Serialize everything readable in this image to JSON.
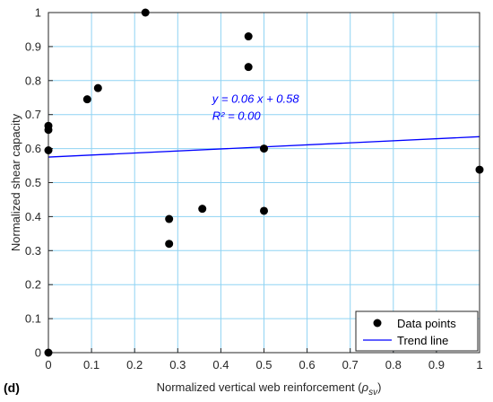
{
  "panel_label": "(d)",
  "chart_data": {
    "type": "scatter",
    "xlabel_prefix": "Normalized vertical web reinforcement (",
    "xlabel_symbol": "ρ",
    "xlabel_subscript": "sv",
    "xlabel_suffix": ")",
    "ylabel": "Normalized shear capacity",
    "xlim": [
      0,
      1
    ],
    "ylim": [
      0,
      1
    ],
    "xticks": [
      0,
      0.1,
      0.2,
      0.3,
      0.4,
      0.5,
      0.6,
      0.7,
      0.8,
      0.9,
      1
    ],
    "xtick_labels": [
      "0",
      "0.1",
      "0.2",
      "0.3",
      "0.4",
      "0.5",
      "0.6",
      "0.7",
      "0.8",
      "0.9",
      "1"
    ],
    "yticks": [
      0,
      0.1,
      0.2,
      0.3,
      0.4,
      0.5,
      0.6,
      0.7,
      0.8,
      0.9,
      1
    ],
    "ytick_labels": [
      "0",
      "0.1",
      "0.2",
      "0.3",
      "0.4",
      "0.5",
      "0.6",
      "0.7",
      "0.8",
      "0.9",
      "1"
    ],
    "grid": true,
    "series": [
      {
        "name": "Data points",
        "kind": "scatter",
        "color": "#000000",
        "points": [
          [
            0.0,
            0.0
          ],
          [
            0.0,
            0.595
          ],
          [
            0.0,
            0.655
          ],
          [
            0.0,
            0.667
          ],
          [
            0.09,
            0.745
          ],
          [
            0.115,
            0.778
          ],
          [
            0.225,
            1.0
          ],
          [
            0.28,
            0.393
          ],
          [
            0.28,
            0.32
          ],
          [
            0.357,
            0.423
          ],
          [
            0.464,
            0.93
          ],
          [
            0.464,
            0.84
          ],
          [
            0.5,
            0.6
          ],
          [
            0.5,
            0.417
          ],
          [
            1.0,
            0.538
          ]
        ]
      },
      {
        "name": "Trend line",
        "kind": "line",
        "color": "#0000ff",
        "slope": 0.06,
        "intercept": 0.575
      }
    ],
    "annotations": [
      {
        "text": "y = 0.06 x + 0.58",
        "x": 0.38,
        "y": 0.735,
        "color": "#0000ff"
      },
      {
        "text": "R² = 0.00",
        "x": 0.38,
        "y": 0.685,
        "color": "#0000ff"
      }
    ],
    "legend": {
      "position": "bottom-right",
      "entries": [
        "Data points",
        "Trend line"
      ]
    }
  }
}
